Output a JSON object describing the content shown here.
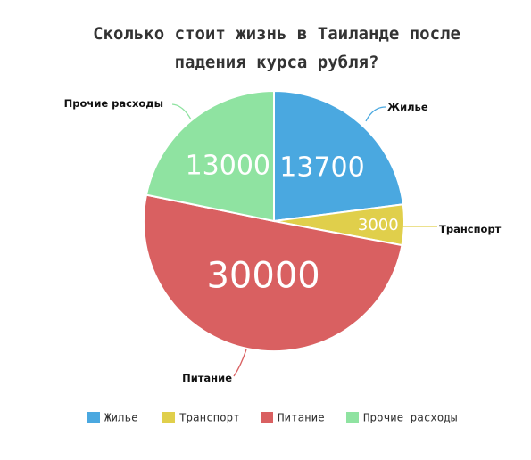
{
  "chart_data": {
    "type": "pie",
    "title_lines": [
      "Сколько стоит жизнь в Таиланде после",
      "падения курса рубля?"
    ],
    "slices": [
      {
        "label": "Жилье",
        "value": 13700,
        "value_label": "13700",
        "color": "#4aa8e0"
      },
      {
        "label": "Транспорт",
        "value": 3000,
        "value_label": "3000",
        "color": "#e0cf4b"
      },
      {
        "label": "Питание",
        "value": 30000,
        "value_label": "30000",
        "color": "#d96061"
      },
      {
        "label": "Прочие расходы",
        "value": 13000,
        "value_label": "13000",
        "color": "#8fe3a1"
      }
    ],
    "legend": {
      "placement": "bottom",
      "items": [
        "Жилье",
        "Транспорт",
        "Питание",
        "Прочие расходы"
      ]
    }
  }
}
